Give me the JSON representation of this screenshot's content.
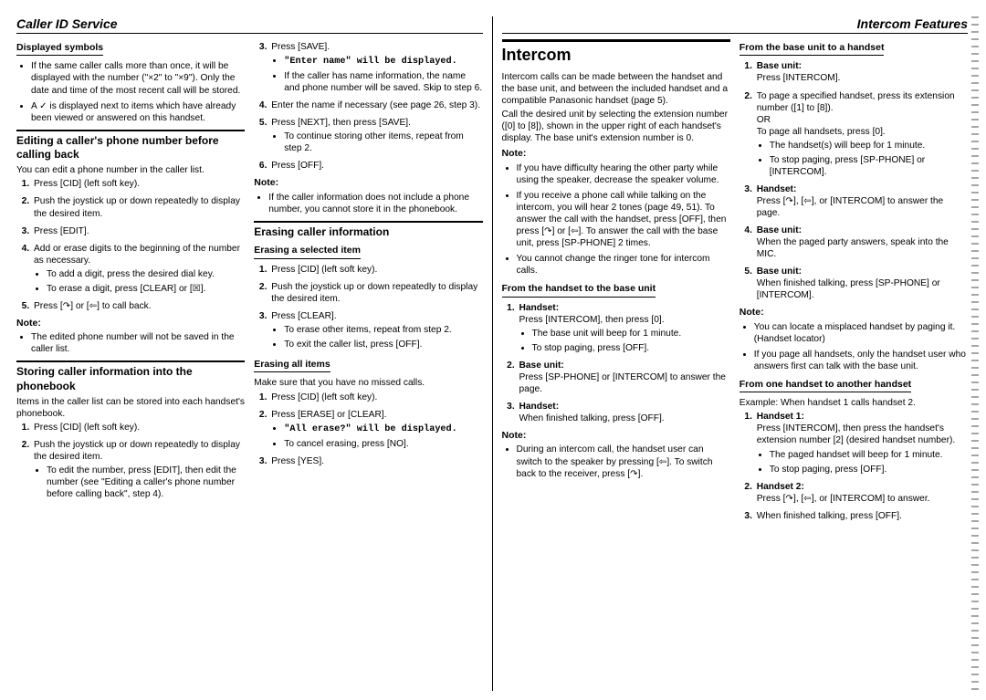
{
  "leftHeader": "Caller ID Service",
  "rightHeader": "Intercom Features",
  "col1": {
    "sub1": "Displayed symbols",
    "b1": "If the same caller calls more than once, it will be displayed with the number (\"×2\" to \"×9\"). Only the date and time of the most recent call will be stored.",
    "b2": "A ✓ is displayed next to items which have already been viewed or answered on this handset.",
    "sec1": "Editing a caller's phone number before calling back",
    "p1": "You can edit a phone number in the caller list.",
    "s1_1": "Press [CID] (left soft key).",
    "s1_2": "Push the joystick up or down repeatedly to display the desired item.",
    "s1_3": "Press [EDIT].",
    "s1_4": "Add or erase digits to the beginning of the number as necessary.",
    "s1_4a": "To add a digit, press the desired dial key.",
    "s1_4b": "To erase a digit, press [CLEAR] or [☒].",
    "s1_5": "Press [↷] or [⇦] to call back.",
    "noteLabel": "Note:",
    "n1": "The edited phone number will not be saved in the caller list.",
    "sec2": "Storing caller information into the phonebook",
    "p2": "Items in the caller list can be stored into each handset's phonebook.",
    "s2_1": "Press [CID] (left soft key).",
    "s2_2": "Push the joystick up or down repeatedly to display the desired item.",
    "s2_2a": "To edit the number, press [EDIT], then edit the number (see \"Editing a caller's phone number before calling back\", step 4)."
  },
  "col2": {
    "s3": "Press [SAVE].",
    "s3a": "\"Enter name\" will be displayed.",
    "s3b": "If the caller has name information, the name and phone number will be saved. Skip to step 6.",
    "s4": "Enter the name if necessary (see page 26, step 3).",
    "s5": "Press [NEXT], then press [SAVE].",
    "s5a": "To continue storing other items, repeat from step 2.",
    "s6": "Press [OFF].",
    "noteLabel": "Note:",
    "n1": "If the caller information does not include a phone number, you cannot store it in the phonebook.",
    "sec1": "Erasing caller information",
    "sub1": "Erasing a selected item",
    "e1": "Press [CID] (left soft key).",
    "e2": "Push the joystick up or down repeatedly to display the desired item.",
    "e3": "Press [CLEAR].",
    "e3a": "To erase other items, repeat from step 2.",
    "e3b": "To exit the caller list, press [OFF].",
    "sub2": "Erasing all items",
    "p1": "Make sure that you have no missed calls.",
    "a1": "Press [CID] (left soft key).",
    "a2": "Press [ERASE] or [CLEAR].",
    "a2a": "\"All erase?\" will be displayed.",
    "a2b": "To cancel erasing, press [NO].",
    "a3": "Press [YES]."
  },
  "col3": {
    "title": "Intercom",
    "p1": "Intercom calls can be made between the handset and the base unit, and between the included handset and a compatible Panasonic handset (page 5).",
    "p2": "Call the desired unit by selecting the extension number ([0] to [8]), shown in the upper right of each handset's display. The base unit's extension number is 0.",
    "noteLabel": "Note:",
    "n1": "If you have difficulty hearing the other party while using the speaker, decrease the speaker volume.",
    "n2": "If you receive a phone call while talking on the intercom, you will hear 2 tones (page 49, 51). To answer the call with the handset, press [OFF], then press [↷] or [⇦]. To answer the call with the base unit, press [SP-PHONE] 2 times.",
    "n3": "You cannot change the ringer tone for intercom calls.",
    "sub1": "From the handset to the base unit",
    "h1l": "Handset:",
    "h1": "Press [INTERCOM], then press [0].",
    "h1a": "The base unit will beep for 1 minute.",
    "h1b": "To stop paging, press [OFF].",
    "h2l": "Base unit:",
    "h2": "Press [SP-PHONE] or [INTERCOM] to answer the page.",
    "h3l": "Handset:",
    "h3": "When finished talking, press [OFF].",
    "noteLabel2": "Note:",
    "n4": "During an intercom call, the handset user can switch to the speaker by pressing [⇦]. To switch back to the receiver, press [↷]."
  },
  "col4": {
    "sub1": "From the base unit to a handset",
    "b1l": "Base unit:",
    "b1": "Press [INTERCOM].",
    "b2": "To page a specified handset, press its extension number ([1] to [8]).",
    "b2or": "OR",
    "b2b": "To page all handsets, press [0].",
    "b2c": "The handset(s) will beep for 1 minute.",
    "b2d": "To stop paging, press [SP-PHONE] or [INTERCOM].",
    "b3l": "Handset:",
    "b3": "Press [↷], [⇦], or [INTERCOM] to answer the page.",
    "b4l": "Base unit:",
    "b4": "When the paged party answers, speak into the MIC.",
    "b5l": "Base unit:",
    "b5": "When finished talking, press [SP-PHONE] or [INTERCOM].",
    "noteLabel": "Note:",
    "n1": "You can locate a misplaced handset by paging it. (Handset locator)",
    "n2": "If you page all handsets, only the handset user who answers first can talk with the base unit.",
    "sub2": "From one handset to another handset",
    "p1": "Example: When handset 1 calls handset 2.",
    "h1l": "Handset 1:",
    "h1": "Press [INTERCOM], then press the handset's extension number [2] (desired handset number).",
    "h1a": "The paged handset will beep for 1 minute.",
    "h1b": "To stop paging, press [OFF].",
    "h2l": "Handset 2:",
    "h2": "Press [↷], [⇦], or [INTERCOM] to answer.",
    "h3": "When finished talking, press [OFF]."
  }
}
